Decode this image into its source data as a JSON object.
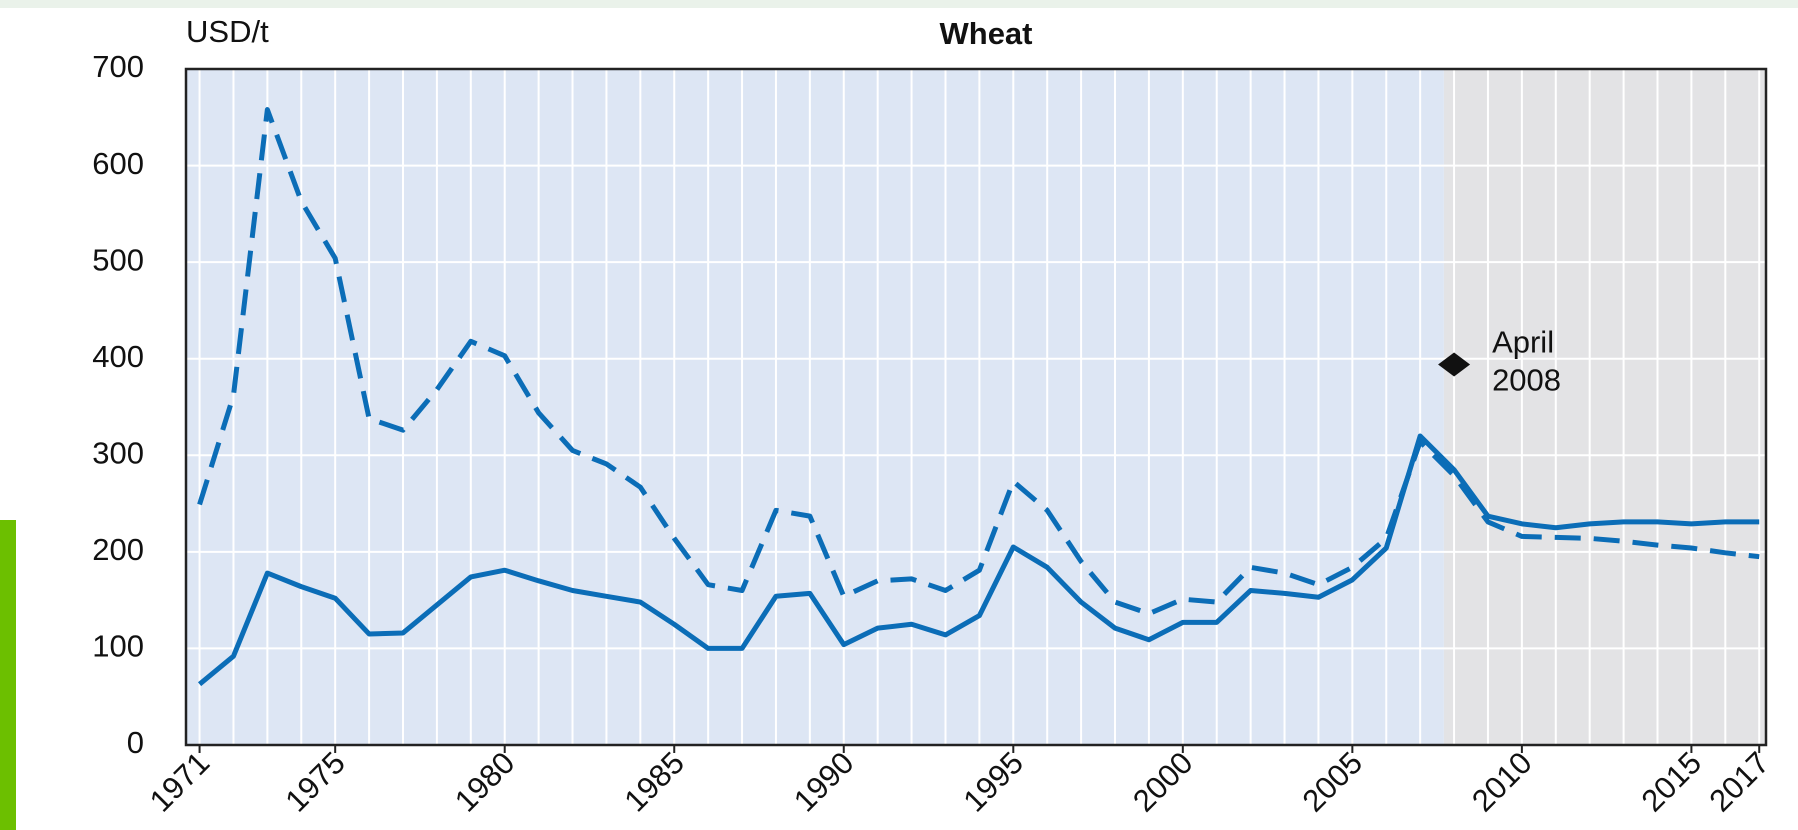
{
  "chart_data": {
    "type": "line",
    "title": "Wheat",
    "y_label": "USD/t",
    "x": [
      1971,
      1972,
      1973,
      1974,
      1975,
      1976,
      1977,
      1978,
      1979,
      1980,
      1981,
      1982,
      1983,
      1984,
      1985,
      1986,
      1987,
      1988,
      1989,
      1990,
      1991,
      1992,
      1993,
      1994,
      1995,
      1996,
      1997,
      1998,
      1999,
      2000,
      2001,
      2002,
      2003,
      2004,
      2005,
      2006,
      2007,
      2008,
      2009,
      2010,
      2011,
      2012,
      2013,
      2014,
      2015,
      2016,
      2017
    ],
    "series": [
      {
        "color": "#0b6db7",
        "dashed": false,
        "values": [
          63,
          92,
          178,
          164,
          152,
          115,
          116,
          145,
          174,
          181,
          170,
          160,
          154,
          148,
          125,
          100,
          100,
          154,
          157,
          104,
          121,
          125,
          114,
          134,
          205,
          184,
          148,
          121,
          109,
          127,
          127,
          160,
          157,
          153,
          171,
          204,
          320,
          285,
          237,
          229,
          225,
          229,
          231,
          231,
          229,
          231,
          231
        ]
      },
      {
        "color": "#0b6db7",
        "dashed": true,
        "values": [
          249,
          362,
          658,
          563,
          504,
          338,
          326,
          368,
          418,
          403,
          344,
          305,
          291,
          267,
          214,
          166,
          160,
          243,
          237,
          154,
          170,
          172,
          160,
          181,
          273,
          243,
          190,
          148,
          136,
          151,
          148,
          184,
          178,
          166,
          184,
          214,
          314,
          279,
          231,
          216,
          215,
          214,
          211,
          207,
          204,
          199,
          195
        ]
      }
    ],
    "xlim": [
      1970.6,
      2017.2
    ],
    "xticks": [
      1971,
      1975,
      1980,
      1985,
      1990,
      1995,
      2000,
      2005,
      2010,
      2015,
      2017
    ],
    "xgrid": [
      1971,
      1972,
      1973,
      1974,
      1975,
      1976,
      1977,
      1978,
      1979,
      1980,
      1981,
      1982,
      1983,
      1984,
      1985,
      1986,
      1987,
      1988,
      1989,
      1990,
      1991,
      1992,
      1993,
      1994,
      1995,
      1996,
      1997,
      1998,
      1999,
      2000,
      2001,
      2002,
      2003,
      2004,
      2005,
      2006,
      2007,
      2008,
      2009,
      2010,
      2011,
      2012,
      2013,
      2014,
      2015,
      2016,
      2017
    ],
    "ylim": [
      0,
      700
    ],
    "yticks": [
      0,
      100,
      200,
      300,
      400,
      500,
      600,
      700
    ],
    "grid": true,
    "shaded_from": 2007.7,
    "background_color": "#dde6f4",
    "shaded_color": "#e3e3e5",
    "annotation": {
      "x": 2008,
      "y": 394,
      "lines": [
        "April",
        "2008"
      ]
    }
  }
}
